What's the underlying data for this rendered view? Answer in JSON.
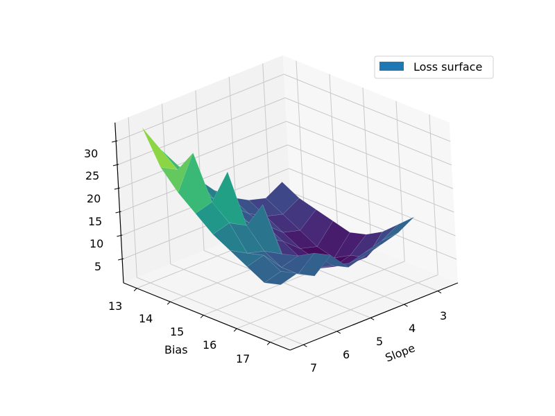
{
  "chart_data": {
    "type": "surface3d",
    "title": "",
    "xlabel": "Slope",
    "ylabel": "Bias",
    "zlabel": "",
    "legend": {
      "entries": [
        "Loss surface"
      ],
      "position": "upper right",
      "swatch_color": "#1f77b4"
    },
    "colormap": "viridis",
    "x_ticks": [
      3,
      4,
      5,
      6,
      7
    ],
    "y_ticks": [
      13,
      14,
      15,
      16,
      17
    ],
    "z_ticks": [
      5,
      10,
      15,
      20,
      25,
      30
    ],
    "xlim": [
      2.4,
      7.4
    ],
    "ylim": [
      12.6,
      17.6
    ],
    "zlim": [
      0,
      34
    ],
    "grid": true,
    "slope_values": [
      7,
      6.5,
      6,
      5.5,
      5,
      4.5,
      4,
      3.5,
      3
    ],
    "bias_values": [
      13,
      13.5,
      14,
      14.5,
      15,
      15.5,
      16,
      16.5,
      17
    ],
    "loss_grid": [
      [
        33,
        27,
        22,
        18,
        14,
        11,
        9,
        8,
        10
      ],
      [
        26,
        24,
        18,
        15,
        12,
        9,
        7,
        6,
        8
      ],
      [
        22,
        29,
        16,
        13,
        10,
        8,
        5,
        4,
        7
      ],
      [
        19,
        20,
        25,
        11,
        8,
        6,
        3,
        2,
        6
      ],
      [
        16,
        17,
        15,
        18,
        6,
        4,
        2,
        1,
        5
      ],
      [
        14,
        12,
        11,
        9,
        5,
        3,
        2,
        3,
        6
      ],
      [
        12,
        13,
        9,
        10,
        6,
        5,
        4,
        4,
        8
      ],
      [
        10,
        11,
        9,
        12,
        8,
        7,
        8,
        9,
        11
      ],
      [
        11,
        12,
        10,
        13,
        9,
        10,
        11,
        12,
        14
      ]
    ]
  },
  "axes": {
    "slope_label": "Slope",
    "bias_label": "Bias",
    "slope_tick_labels": [
      "3",
      "4",
      "5",
      "6",
      "7"
    ],
    "bias_tick_labels": [
      "13",
      "14",
      "15",
      "16",
      "17"
    ],
    "z_tick_labels": [
      "5",
      "10",
      "15",
      "20",
      "25",
      "30"
    ]
  },
  "legend": {
    "label": "Loss surface",
    "swatch_color": "#1f77b4"
  }
}
